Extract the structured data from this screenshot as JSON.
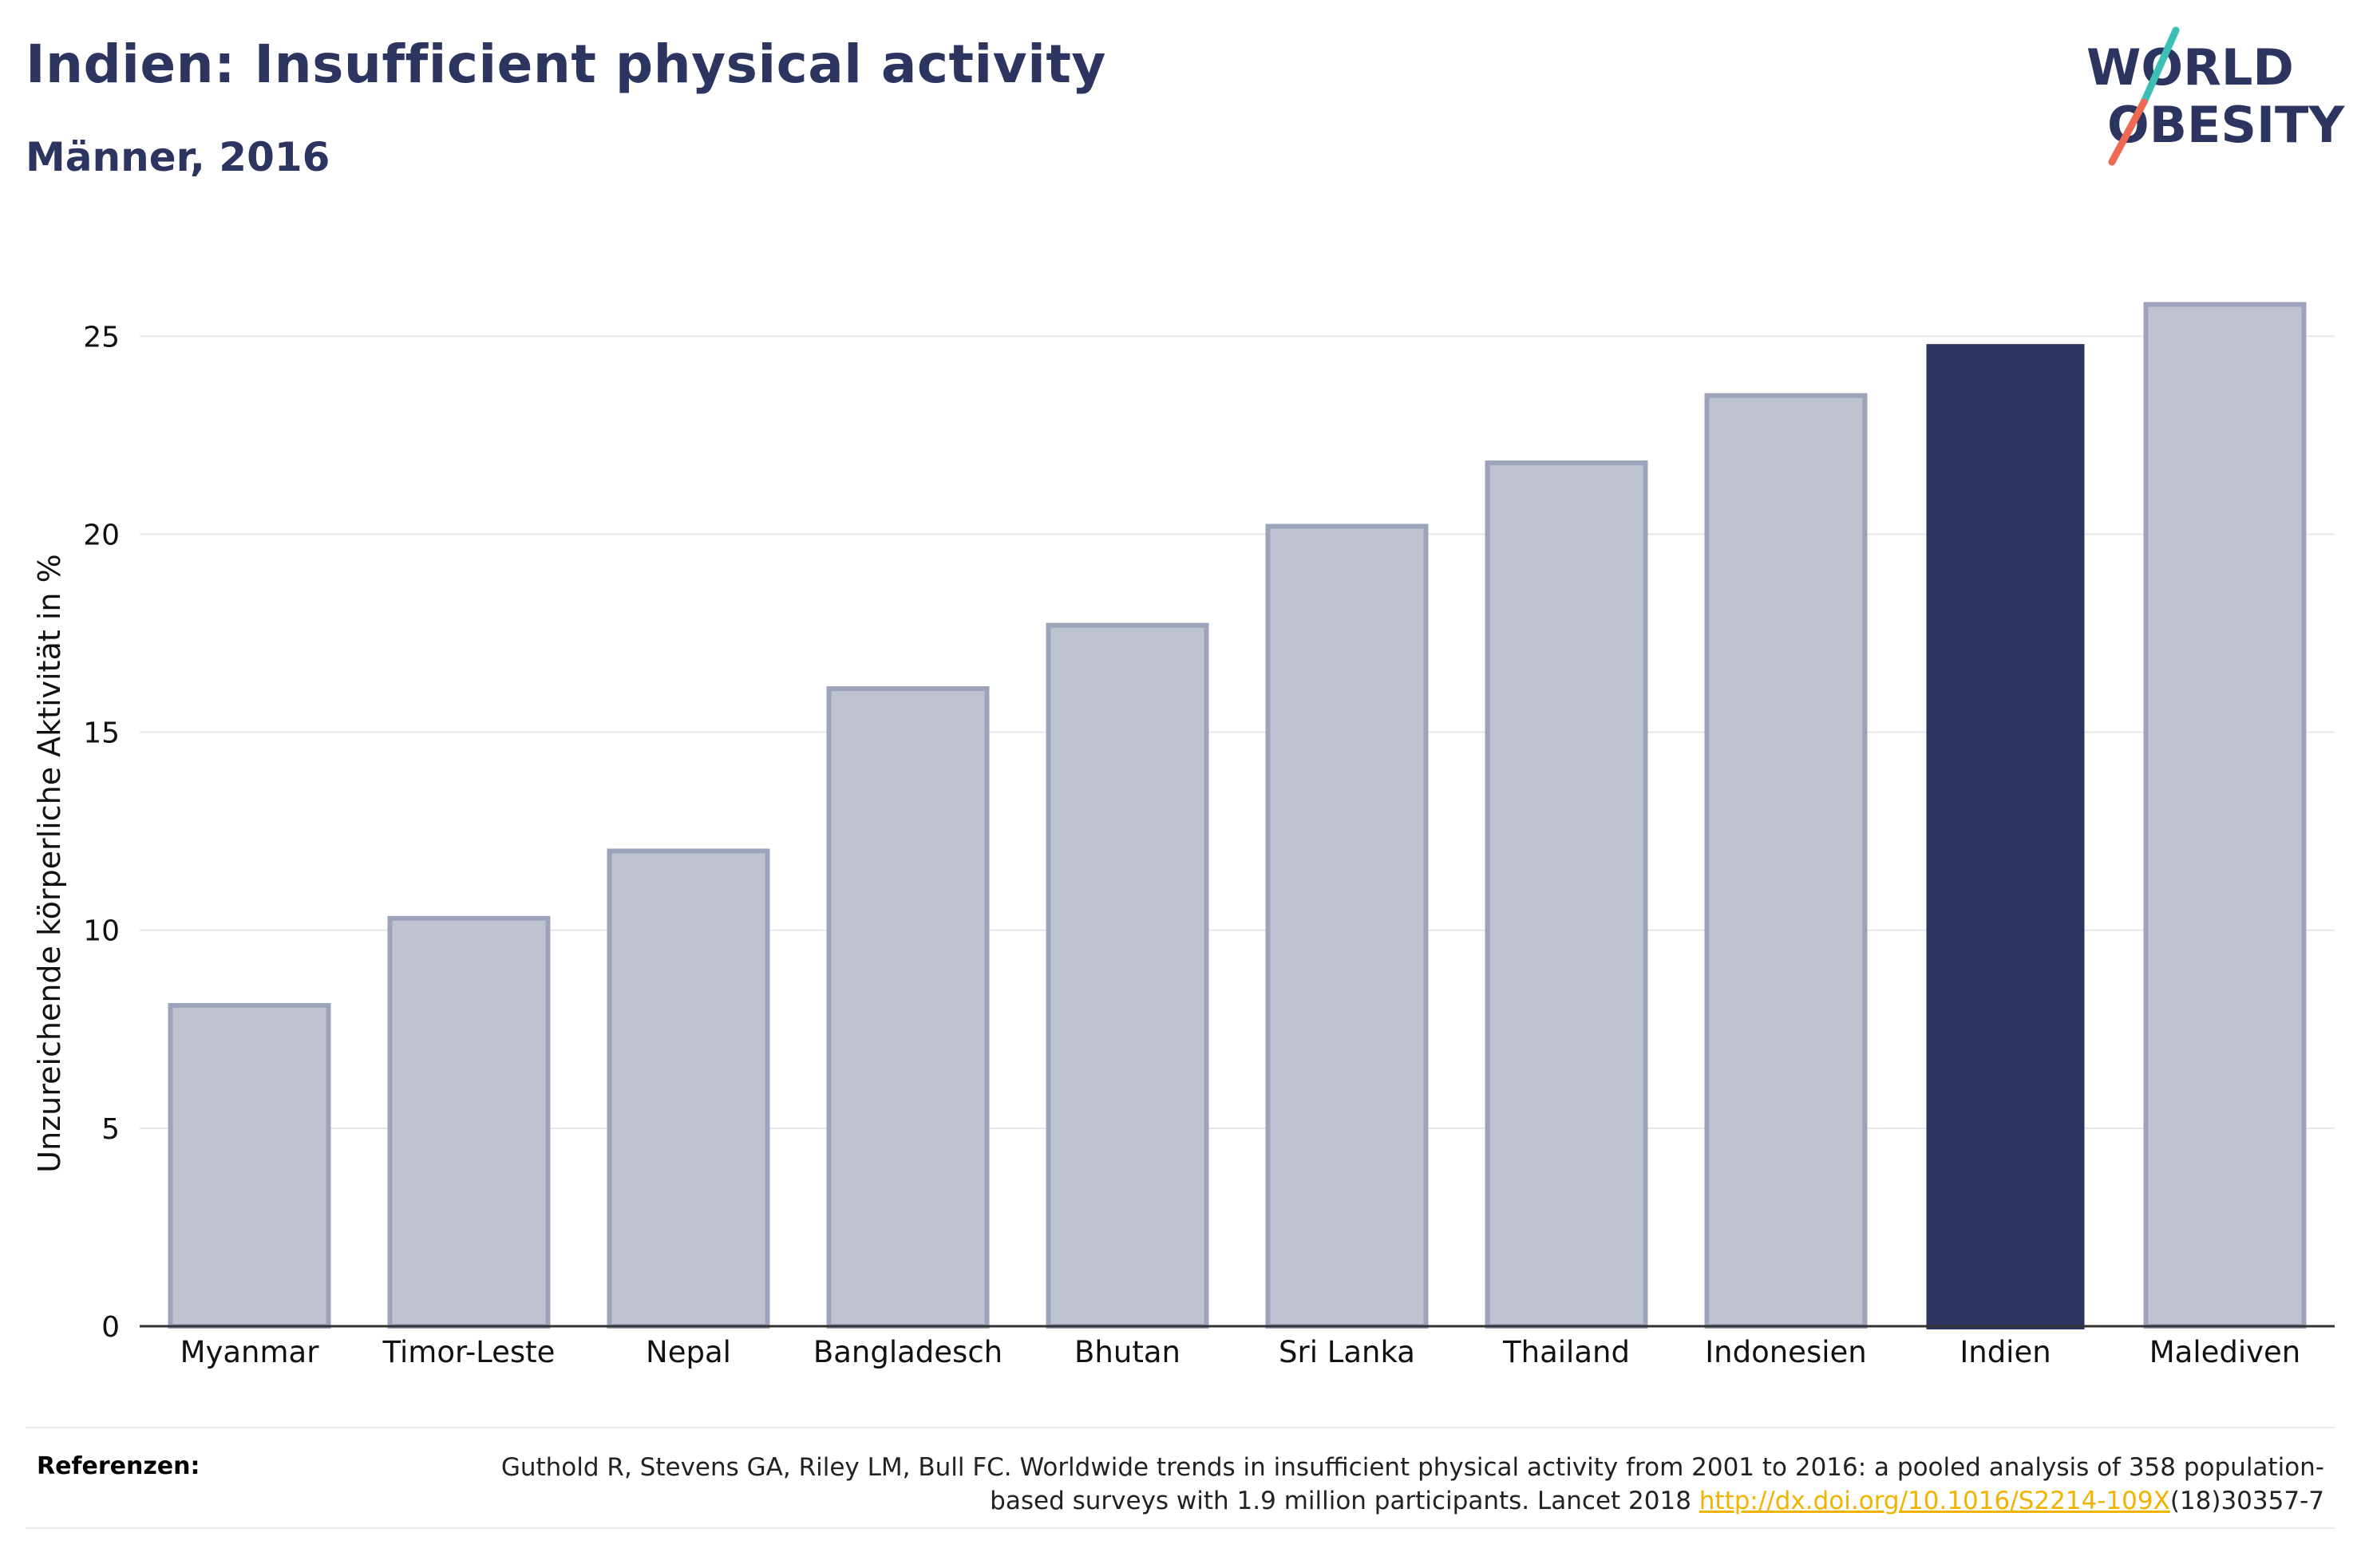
{
  "title": "Indien: Insufficient physical activity",
  "subtitle": "Männer, 2016",
  "logo": {
    "line1": "WORLD",
    "line2": "OBESITY"
  },
  "references": {
    "label": "Referenzen:",
    "text_before_link": "Guthold R, Stevens GA, Riley LM, Bull FC. Worldwide trends in insufficient physical activity from 2001 to 2016: a pooled analysis of 358 population-based surveys with 1.9 million participants. Lancet 2018 ",
    "link_text": "http://dx.doi.org/10.1016/S2214-109X",
    "text_after_link": "(18)30357-7"
  },
  "colors": {
    "highlight": "#2c3560",
    "other": "#bfc2cf",
    "other_edge": "#9ea3bc",
    "grid": "#e6e6e6",
    "logo_slash_teal": "#3cbfb4",
    "logo_slash_coral": "#ee6a55"
  },
  "chart_data": {
    "type": "bar",
    "categories": [
      "Myanmar",
      "Timor-Leste",
      "Nepal",
      "Bangladesch",
      "Bhutan",
      "Sri Lanka",
      "Thailand",
      "Indonesien",
      "Indien",
      "Malediven"
    ],
    "values": [
      8.1,
      10.3,
      12.0,
      16.1,
      17.7,
      20.2,
      21.8,
      23.5,
      24.8,
      25.8
    ],
    "highlight": "Indien",
    "ylabel": "Unzureichende körperliche Aktivität in %",
    "ylim": [
      0,
      27
    ],
    "yticks": [
      0,
      5,
      10,
      15,
      20,
      25
    ],
    "grid": true
  }
}
